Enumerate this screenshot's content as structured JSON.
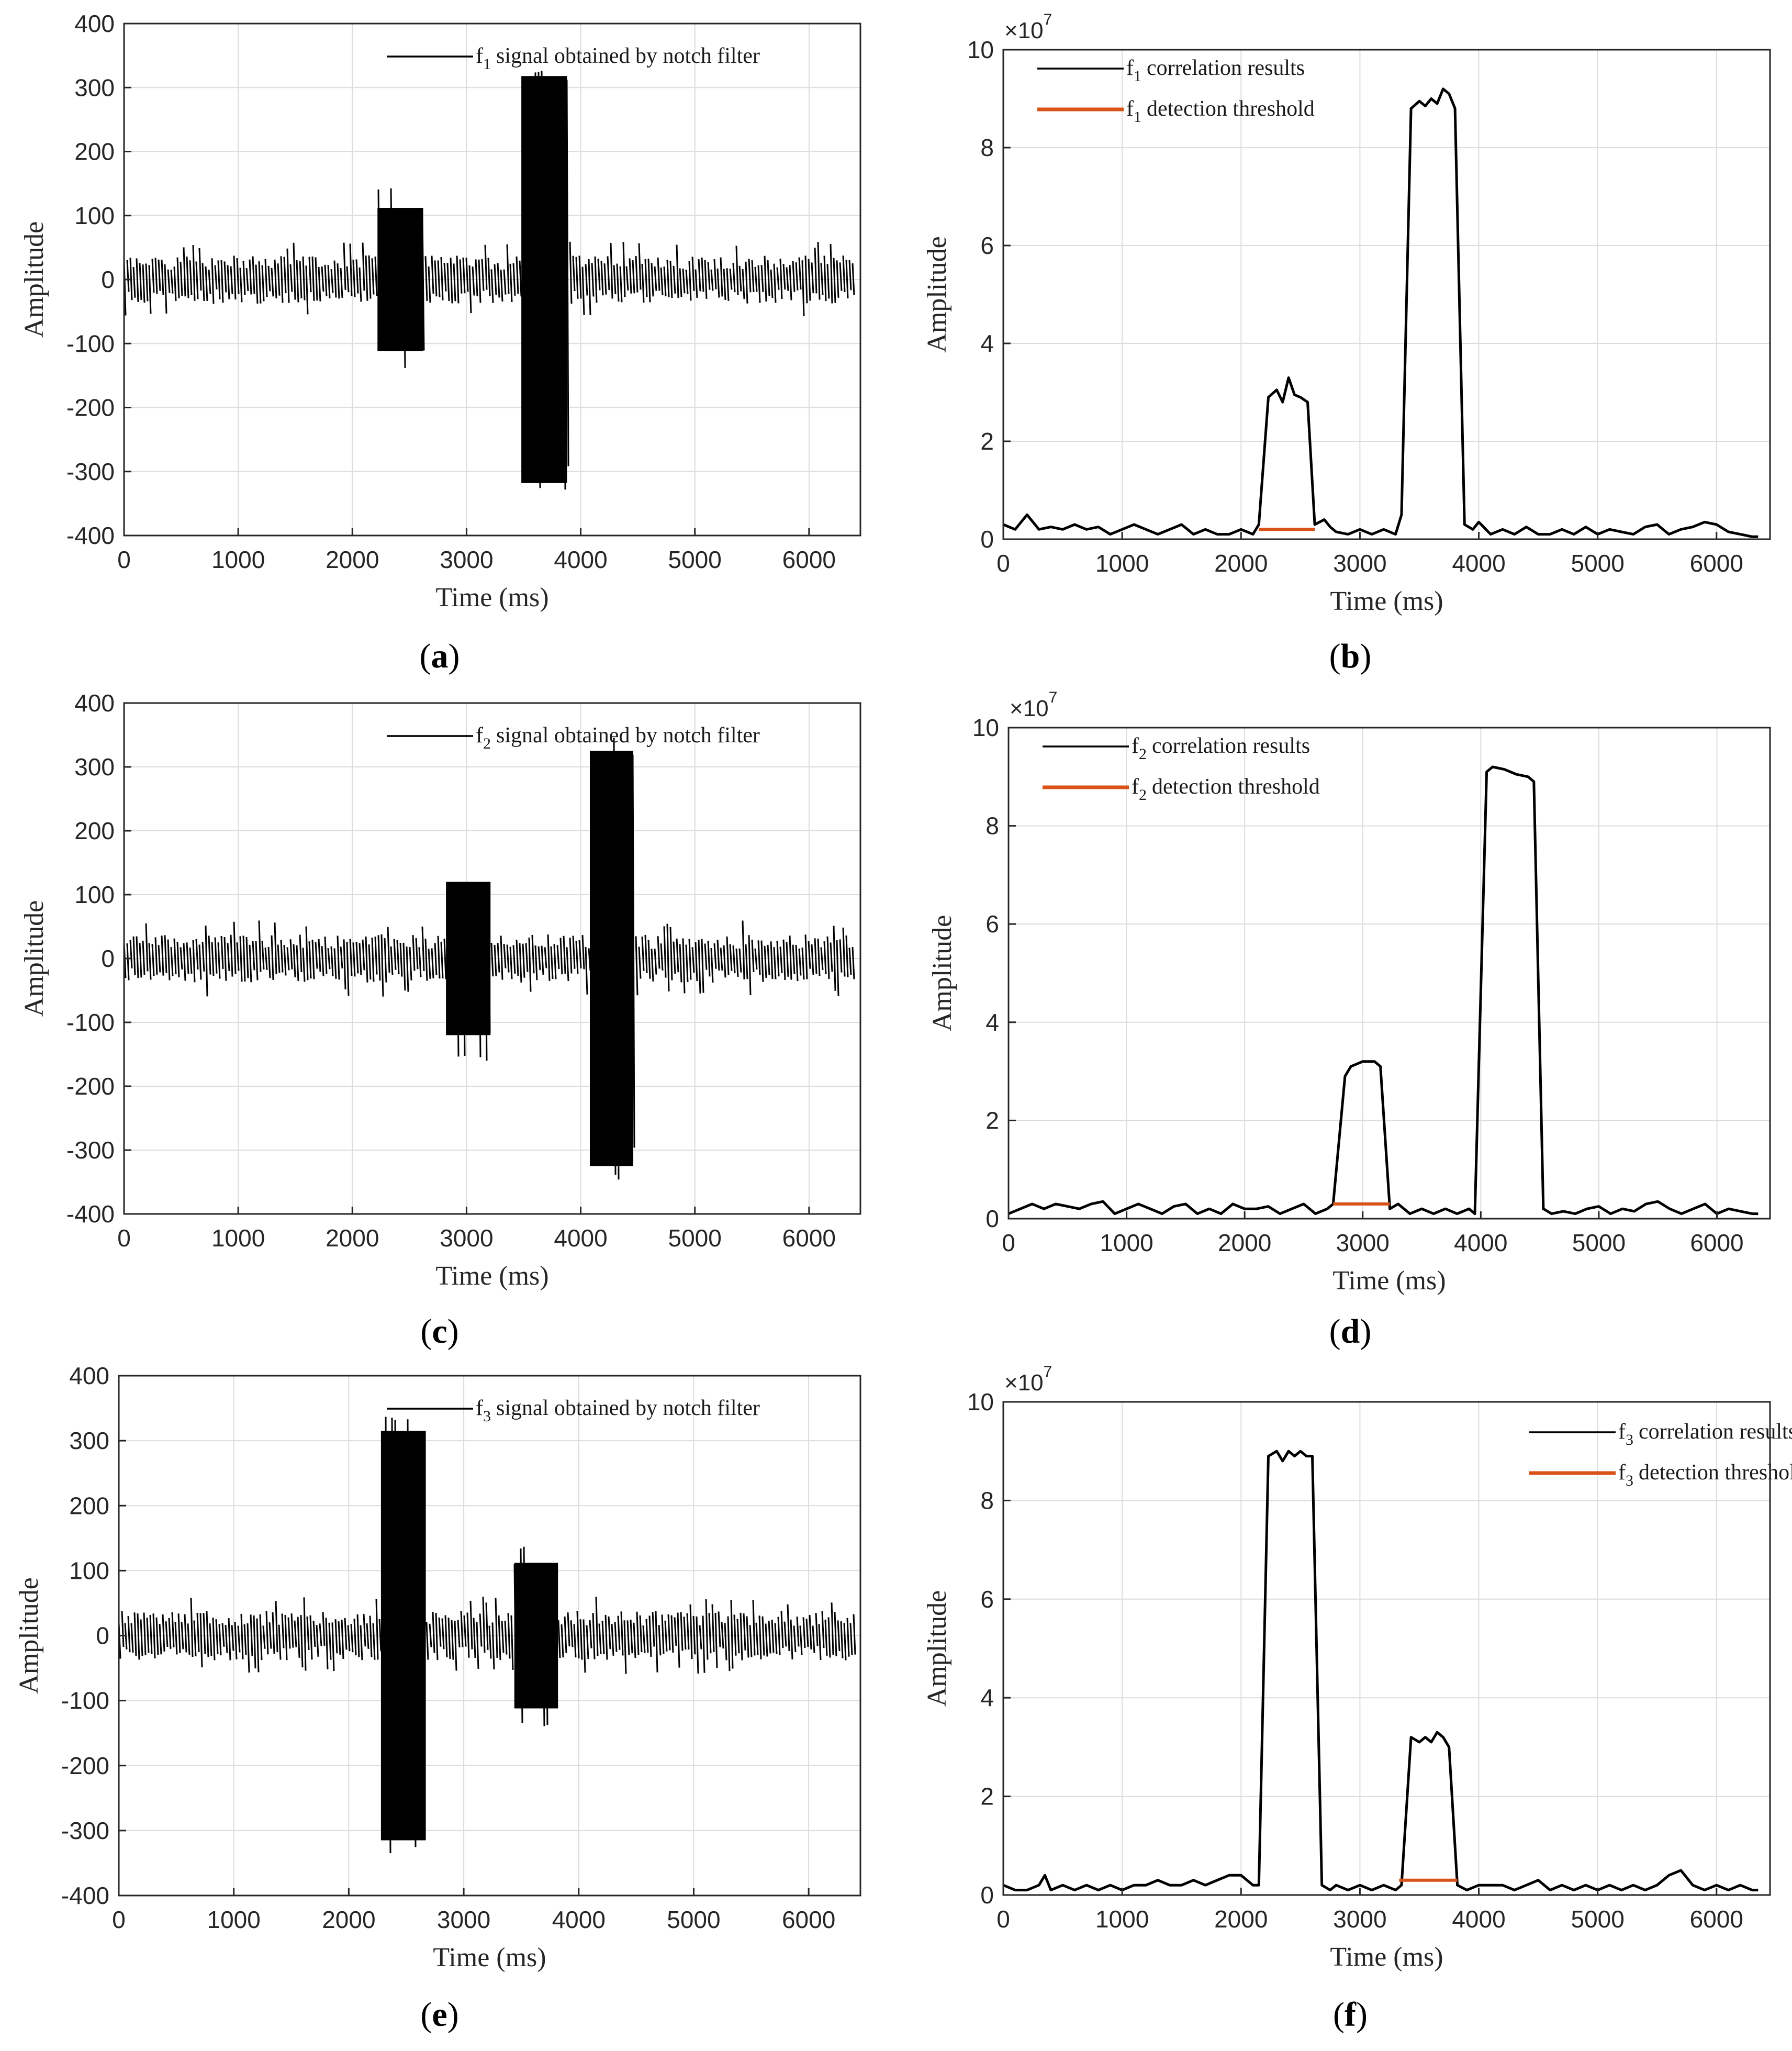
{
  "chart_data": [
    {
      "id": "a",
      "type": "line",
      "caption": "a",
      "xlabel": "Time (ms)",
      "ylabel": "Amplitude",
      "xlim": [
        0,
        6450
      ],
      "ylim": [
        -400,
        400
      ],
      "xticks": [
        0,
        1000,
        2000,
        3000,
        4000,
        5000,
        6000
      ],
      "yticks": [
        400,
        300,
        200,
        100,
        0,
        -100,
        -200,
        -300,
        -400
      ],
      "grid": true,
      "legend_position": "top-right",
      "series": [
        {
          "name": "signal obtained by notch filter",
          "freq_base": "f",
          "freq_sub": "1",
          "color": "#000000",
          "style": "band",
          "noise_level": 38,
          "noise_peak": 60,
          "bursts": [
            {
              "start": 2220,
              "end": 2620,
              "amplitude": 112,
              "peak": 145
            },
            {
              "start": 3480,
              "end": 3880,
              "amplitude": 318,
              "peak": 330
            }
          ]
        }
      ]
    },
    {
      "id": "b",
      "type": "line",
      "caption": "b",
      "xlabel": "Time (ms)",
      "ylabel": "Amplitude",
      "xlim": [
        0,
        6450
      ],
      "ylim": [
        0,
        10
      ],
      "xticks": [
        0,
        1000,
        2000,
        3000,
        4000,
        5000,
        6000
      ],
      "yticks": [
        0,
        2,
        4,
        6,
        8,
        10
      ],
      "y_multiplier_base": "×10",
      "y_multiplier_exp": "7",
      "grid": true,
      "legend_position": "top-left",
      "series": [
        {
          "name": "correlation results",
          "freq_base": "f",
          "freq_sub": "1",
          "color": "#000000",
          "style": "line",
          "x": [
            0,
            100,
            200,
            300,
            400,
            500,
            600,
            700,
            800,
            900,
            1000,
            1100,
            1200,
            1300,
            1400,
            1500,
            1600,
            1700,
            1800,
            1900,
            2000,
            2100,
            2150,
            2230,
            2300,
            2350,
            2400,
            2450,
            2500,
            2560,
            2620,
            2700,
            2750,
            2800,
            2900,
            3000,
            3100,
            3200,
            3300,
            3350,
            3430,
            3500,
            3550,
            3600,
            3650,
            3700,
            3750,
            3800,
            3880,
            3950,
            4000,
            4100,
            4200,
            4300,
            4400,
            4500,
            4600,
            4700,
            4800,
            4900,
            5000,
            5100,
            5200,
            5300,
            5400,
            5500,
            5600,
            5700,
            5800,
            5900,
            6000,
            6100,
            6200,
            6300,
            6350
          ],
          "y": [
            0.3,
            0.2,
            0.5,
            0.2,
            0.25,
            0.2,
            0.3,
            0.2,
            0.25,
            0.1,
            0.2,
            0.3,
            0.2,
            0.1,
            0.2,
            0.3,
            0.1,
            0.2,
            0.1,
            0.1,
            0.2,
            0.1,
            0.3,
            2.9,
            3.05,
            2.8,
            3.3,
            2.95,
            2.9,
            2.8,
            0.3,
            0.4,
            0.25,
            0.15,
            0.1,
            0.2,
            0.1,
            0.2,
            0.1,
            0.5,
            8.8,
            8.95,
            8.85,
            9.0,
            8.9,
            9.2,
            9.1,
            8.8,
            0.3,
            0.2,
            0.35,
            0.1,
            0.2,
            0.1,
            0.25,
            0.1,
            0.1,
            0.2,
            0.1,
            0.25,
            0.1,
            0.2,
            0.15,
            0.1,
            0.25,
            0.3,
            0.1,
            0.2,
            0.25,
            0.35,
            0.3,
            0.15,
            0.1,
            0.05,
            0.05
          ]
        },
        {
          "name": "detection threshold",
          "freq_base": "f",
          "freq_sub": "1",
          "color": "#D95319",
          "style": "threshold",
          "x": [
            2150,
            2620
          ],
          "y": [
            0.2,
            0.2
          ]
        }
      ]
    },
    {
      "id": "c",
      "type": "line",
      "caption": "c",
      "xlabel": "Time (ms)",
      "ylabel": "Amplitude",
      "xlim": [
        0,
        6450
      ],
      "ylim": [
        -400,
        400
      ],
      "xticks": [
        0,
        1000,
        2000,
        3000,
        4000,
        5000,
        6000
      ],
      "yticks": [
        400,
        300,
        200,
        100,
        0,
        -100,
        -200,
        -300,
        -400
      ],
      "grid": true,
      "legend_position": "top-right",
      "series": [
        {
          "name": "signal obtained by notch filter",
          "freq_base": "f",
          "freq_sub": "2",
          "color": "#000000",
          "style": "band",
          "noise_level": 38,
          "noise_peak": 60,
          "bursts": [
            {
              "start": 2820,
              "end": 3210,
              "amplitude": 120,
              "peak": 160
            },
            {
              "start": 4080,
              "end": 4460,
              "amplitude": 325,
              "peak": 350
            }
          ]
        }
      ]
    },
    {
      "id": "d",
      "type": "line",
      "caption": "d",
      "xlabel": "Time (ms)",
      "ylabel": "Amplitude",
      "xlim": [
        0,
        6450
      ],
      "ylim": [
        0,
        10
      ],
      "xticks": [
        0,
        1000,
        2000,
        3000,
        4000,
        5000,
        6000
      ],
      "yticks": [
        0,
        2,
        4,
        6,
        8,
        10
      ],
      "y_multiplier_base": "×10",
      "y_multiplier_exp": "7",
      "grid": true,
      "legend_position": "top-left",
      "series": [
        {
          "name": "correlation results",
          "freq_base": "f",
          "freq_sub": "2",
          "color": "#000000",
          "style": "line",
          "x": [
            0,
            100,
            200,
            300,
            400,
            500,
            600,
            700,
            800,
            900,
            1000,
            1100,
            1200,
            1300,
            1400,
            1500,
            1600,
            1700,
            1800,
            1900,
            2000,
            2100,
            2200,
            2300,
            2400,
            2500,
            2600,
            2700,
            2750,
            2850,
            2900,
            3000,
            3100,
            3150,
            3230,
            3300,
            3400,
            3500,
            3600,
            3700,
            3800,
            3900,
            3950,
            4050,
            4100,
            4200,
            4300,
            4400,
            4450,
            4530,
            4600,
            4700,
            4800,
            4900,
            5000,
            5100,
            5200,
            5300,
            5400,
            5500,
            5600,
            5700,
            5800,
            5900,
            6000,
            6100,
            6200,
            6300,
            6350
          ],
          "y": [
            0.1,
            0.2,
            0.3,
            0.2,
            0.3,
            0.25,
            0.2,
            0.3,
            0.35,
            0.1,
            0.2,
            0.3,
            0.2,
            0.1,
            0.25,
            0.3,
            0.1,
            0.2,
            0.1,
            0.3,
            0.2,
            0.2,
            0.25,
            0.1,
            0.2,
            0.3,
            0.1,
            0.2,
            0.3,
            2.9,
            3.1,
            3.2,
            3.2,
            3.1,
            0.2,
            0.3,
            0.1,
            0.2,
            0.1,
            0.2,
            0.1,
            0.2,
            0.1,
            9.1,
            9.2,
            9.15,
            9.05,
            9.0,
            8.9,
            0.2,
            0.1,
            0.15,
            0.1,
            0.2,
            0.25,
            0.1,
            0.2,
            0.15,
            0.3,
            0.35,
            0.2,
            0.1,
            0.2,
            0.3,
            0.1,
            0.2,
            0.15,
            0.1,
            0.1
          ]
        },
        {
          "name": "detection threshold",
          "freq_base": "f",
          "freq_sub": "2",
          "color": "#D95319",
          "style": "threshold",
          "x": [
            2750,
            3230
          ],
          "y": [
            0.3,
            0.3
          ]
        }
      ]
    },
    {
      "id": "e",
      "type": "line",
      "caption": "e",
      "xlabel": "Time (ms)",
      "ylabel": "Amplitude",
      "xlim": [
        0,
        6450
      ],
      "ylim": [
        -400,
        400
      ],
      "xticks": [
        0,
        1000,
        2000,
        3000,
        4000,
        5000,
        6000
      ],
      "yticks": [
        400,
        300,
        200,
        100,
        0,
        -100,
        -200,
        -300,
        -400
      ],
      "grid": true,
      "legend_position": "top-right",
      "series": [
        {
          "name": "signal obtained by notch filter",
          "freq_base": "f",
          "freq_sub": "3",
          "color": "#000000",
          "style": "band",
          "noise_level": 38,
          "noise_peak": 60,
          "bursts": [
            {
              "start": 2280,
              "end": 2670,
              "amplitude": 315,
              "peak": 340
            },
            {
              "start": 3440,
              "end": 3820,
              "amplitude": 112,
              "peak": 140
            }
          ]
        }
      ]
    },
    {
      "id": "f",
      "type": "line",
      "caption": "f",
      "xlabel": "Time (ms)",
      "ylabel": "Amplitude",
      "xlim": [
        0,
        6450
      ],
      "ylim": [
        0,
        10
      ],
      "xticks": [
        0,
        1000,
        2000,
        3000,
        4000,
        5000,
        6000
      ],
      "yticks": [
        0,
        2,
        4,
        6,
        8,
        10
      ],
      "y_multiplier_base": "×10",
      "y_multiplier_exp": "7",
      "grid": true,
      "legend_position": "top-right",
      "series": [
        {
          "name": "correlation results",
          "freq_base": "f",
          "freq_sub": "3",
          "color": "#000000",
          "style": "line",
          "x": [
            0,
            100,
            200,
            300,
            350,
            400,
            500,
            600,
            700,
            800,
            900,
            1000,
            1100,
            1200,
            1300,
            1400,
            1500,
            1600,
            1700,
            1800,
            1900,
            2000,
            2100,
            2150,
            2230,
            2300,
            2350,
            2400,
            2450,
            2500,
            2550,
            2600,
            2680,
            2750,
            2800,
            2900,
            3000,
            3100,
            3200,
            3300,
            3350,
            3430,
            3500,
            3550,
            3600,
            3650,
            3700,
            3750,
            3820,
            3900,
            4000,
            4100,
            4200,
            4300,
            4400,
            4500,
            4600,
            4700,
            4800,
            4900,
            5000,
            5100,
            5200,
            5300,
            5400,
            5500,
            5600,
            5700,
            5800,
            5900,
            6000,
            6100,
            6200,
            6300,
            6350
          ],
          "y": [
            0.2,
            0.1,
            0.1,
            0.2,
            0.4,
            0.1,
            0.2,
            0.1,
            0.2,
            0.1,
            0.2,
            0.1,
            0.2,
            0.2,
            0.3,
            0.2,
            0.2,
            0.3,
            0.2,
            0.3,
            0.4,
            0.4,
            0.2,
            0.2,
            8.9,
            9.0,
            8.8,
            9.0,
            8.9,
            9.0,
            8.9,
            8.9,
            0.2,
            0.1,
            0.2,
            0.1,
            0.2,
            0.1,
            0.2,
            0.1,
            0.2,
            3.2,
            3.1,
            3.2,
            3.1,
            3.3,
            3.2,
            3.0,
            0.2,
            0.1,
            0.2,
            0.2,
            0.2,
            0.1,
            0.2,
            0.3,
            0.1,
            0.2,
            0.1,
            0.2,
            0.1,
            0.2,
            0.1,
            0.2,
            0.1,
            0.2,
            0.4,
            0.5,
            0.2,
            0.1,
            0.2,
            0.1,
            0.2,
            0.1,
            0.1
          ]
        },
        {
          "name": "detection threshold",
          "freq_base": "f",
          "freq_sub": "3",
          "color": "#D95319",
          "style": "threshold",
          "x": [
            3330,
            3820
          ],
          "y": [
            0.3,
            0.3
          ]
        }
      ]
    }
  ]
}
